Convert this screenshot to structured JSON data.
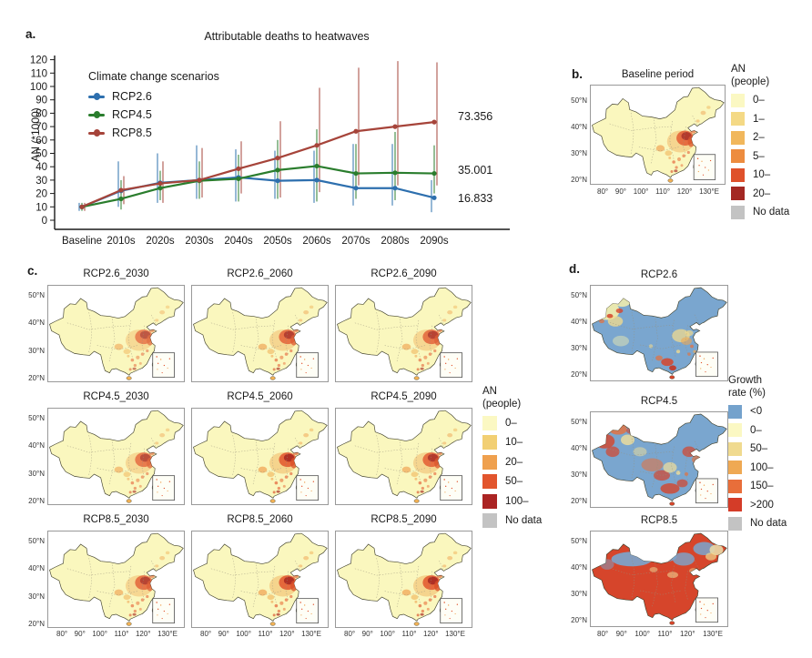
{
  "panels": {
    "a_label": "a.",
    "b_label": "b.",
    "c_label": "c.",
    "d_label": "d."
  },
  "chart_data": {
    "type": "line",
    "title": "Attributable deaths to heatwaves",
    "ylabel": "AN (*1000)",
    "legend_title": "Climate change scenarios",
    "legend_position": "upper-left-inside",
    "grid": false,
    "categories": [
      "Baseline",
      "2010s",
      "2020s",
      "2030s",
      "2040s",
      "2050s",
      "2060s",
      "2070s",
      "2080s",
      "2090s"
    ],
    "yticks": [
      0,
      10,
      20,
      30,
      40,
      50,
      60,
      70,
      80,
      90,
      100,
      110,
      120
    ],
    "ylim": [
      0,
      120
    ],
    "series": [
      {
        "name": "RCP2.6",
        "color": "#2D6FAE",
        "end_label": "16.833",
        "values": [
          10,
          22,
          28,
          30,
          32,
          29.5,
          30,
          24,
          24,
          16.8
        ],
        "lower": [
          7,
          10,
          13,
          16,
          14,
          16,
          13,
          11,
          11,
          6
        ],
        "upper": [
          13,
          44,
          50,
          56,
          53,
          52,
          52,
          57,
          57,
          30
        ]
      },
      {
        "name": "RCP4.5",
        "color": "#2A7D2D",
        "end_label": "35.001",
        "values": [
          10,
          16,
          24,
          29.5,
          31,
          37.5,
          40.5,
          35,
          35.5,
          35
        ],
        "lower": [
          7,
          8,
          15,
          16,
          14,
          16,
          14,
          16,
          15,
          20
        ],
        "upper": [
          13,
          30,
          37,
          44,
          49,
          60,
          68,
          57,
          66,
          56
        ]
      },
      {
        "name": "RCP8.5",
        "color": "#A6443A",
        "end_label": "73.356",
        "values": [
          10,
          22.5,
          27.5,
          30,
          38.5,
          46.5,
          56,
          66.5,
          70,
          73.4
        ],
        "lower": [
          7,
          12,
          13,
          17,
          20,
          17,
          21,
          26,
          26,
          26
        ],
        "upper": [
          13,
          33,
          44,
          54,
          59,
          74,
          99,
          114,
          119,
          118
        ]
      }
    ]
  },
  "map_axes": {
    "y": [
      "50°N",
      "40°N",
      "30°N",
      "20°N"
    ],
    "x": [
      "80°",
      "90°",
      "100°",
      "110°",
      "120°",
      "130°E"
    ]
  },
  "panel_b": {
    "title": "Baseline period",
    "legend": {
      "title_line1": "AN",
      "title_line2": "(people)",
      "items": [
        {
          "color": "#FBF8C3",
          "label": "0–"
        },
        {
          "color": "#F4D985",
          "label": "1–"
        },
        {
          "color": "#F1B75C",
          "label": "2–"
        },
        {
          "color": "#ED8C3F",
          "label": "5–"
        },
        {
          "color": "#DF512B",
          "label": "10–"
        },
        {
          "color": "#A32823",
          "label": "20–"
        },
        {
          "color": "#C3C3C3",
          "label": "No data"
        }
      ]
    }
  },
  "panel_c": {
    "maps": [
      {
        "title": "RCP2.6_2030"
      },
      {
        "title": "RCP2.6_2060"
      },
      {
        "title": "RCP2.6_2090"
      },
      {
        "title": "RCP4.5_2030"
      },
      {
        "title": "RCP4.5_2060"
      },
      {
        "title": "RCP4.5_2090"
      },
      {
        "title": "RCP8.5_2030"
      },
      {
        "title": "RCP8.5_2060"
      },
      {
        "title": "RCP8.5_2090"
      }
    ],
    "legend": {
      "title_line1": "AN",
      "title_line2": "(people)",
      "items": [
        {
          "color": "#FBF8C3",
          "label": "0–"
        },
        {
          "color": "#F2CF73",
          "label": "10–"
        },
        {
          "color": "#EFA04E",
          "label": "20–"
        },
        {
          "color": "#E2552D",
          "label": "50–"
        },
        {
          "color": "#AB2423",
          "label": "100–"
        },
        {
          "color": "#C3C3C3",
          "label": "No data"
        }
      ]
    }
  },
  "panel_d": {
    "maps": [
      {
        "title": "RCP2.6"
      },
      {
        "title": "RCP4.5"
      },
      {
        "title": "RCP8.5"
      }
    ],
    "legend": {
      "title_line1": "Growth",
      "title_line2": "rate (%)",
      "items": [
        {
          "color": "#74A2CC",
          "label": "<0"
        },
        {
          "color": "#FBF8C3",
          "label": "0–"
        },
        {
          "color": "#F0DA8F",
          "label": "50–"
        },
        {
          "color": "#EFA953",
          "label": "100–"
        },
        {
          "color": "#E86E3A",
          "label": "150–"
        },
        {
          "color": "#D43C28",
          "label": ">200"
        },
        {
          "color": "#C3C3C3",
          "label": "No data"
        }
      ]
    }
  },
  "map_colors": {
    "base_yellow": "#FAF7BE",
    "base_blue": "#7AA6CF",
    "base_red": "#D6452B",
    "no_data_gray": "#C3C3C3"
  }
}
